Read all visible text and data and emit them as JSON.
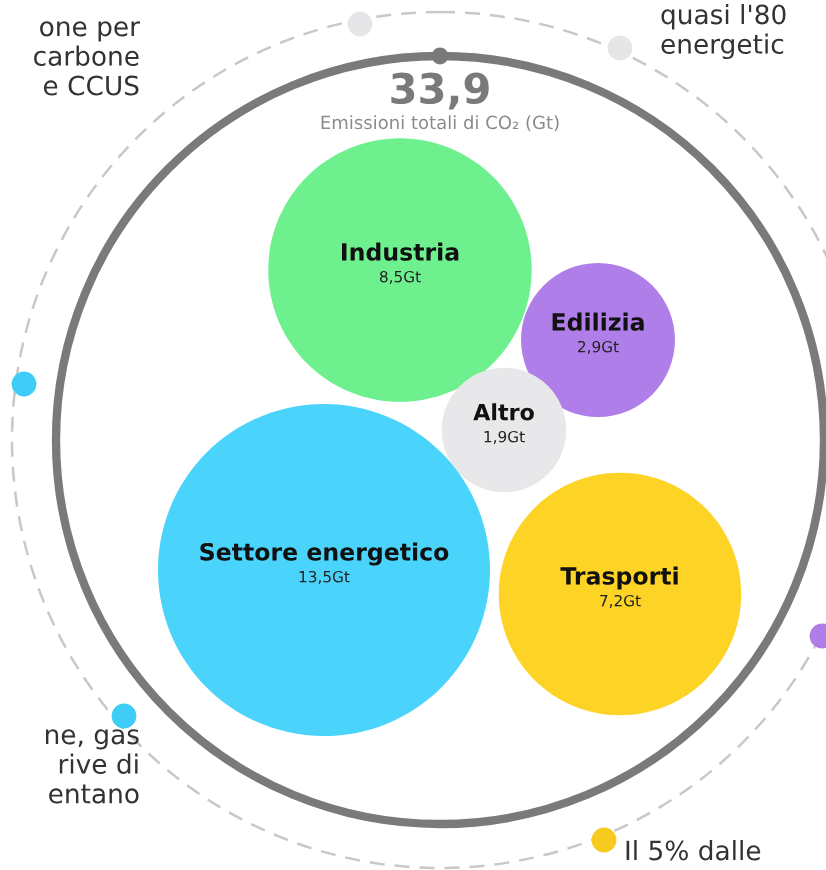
{
  "chart_data": {
    "type": "other",
    "title": "33,9",
    "subtitle": "Emissioni totali di CO₂ (Gt)",
    "categories": [
      "Industria",
      "Edilizia",
      "Altro",
      "Settore energetico",
      "Trasporti"
    ],
    "values": [
      8.5,
      2.9,
      1.9,
      13.5,
      7.2
    ],
    "value_labels": [
      "8,5Gt",
      "2,9Gt",
      "1,9Gt",
      "13,5Gt",
      "7,2Gt"
    ],
    "colors": [
      "#6ef08f",
      "#b07ee8",
      "#e8e8ea",
      "#4ad3fb",
      "#fdd325"
    ],
    "annotations": [
      "one per\ncarbone\ne CCUS",
      "quasi l'80\nenergetic",
      "ne, gas\nrive di\nentano",
      "Il 5% dalle"
    ]
  }
}
